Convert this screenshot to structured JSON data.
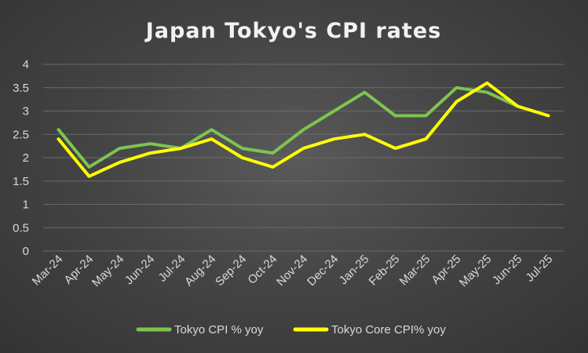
{
  "chart_data": {
    "type": "line",
    "title": "Japan Tokyo's CPI rates",
    "xlabel": "",
    "ylabel": "",
    "categories": [
      "Mar-24",
      "Apr-24",
      "May-24",
      "Jun-24",
      "Jul-24",
      "Aug-24",
      "Sep-24",
      "Oct-24",
      "Nov-24",
      "Dec-24",
      "Jan-25",
      "Feb-25",
      "Mar-25",
      "Apr-25",
      "May-25",
      "Jun-25",
      "Jul-25"
    ],
    "yticks": [
      "0",
      "0.5",
      "1",
      "1.5",
      "2",
      "2.5",
      "3",
      "3.5",
      "4"
    ],
    "ylim": [
      0,
      4
    ],
    "grid": true,
    "legend": "bottom",
    "series": [
      {
        "name": "Tokyo CPI % yoy",
        "color": "#7dc451",
        "values": [
          2.6,
          1.8,
          2.2,
          2.3,
          2.2,
          2.6,
          2.2,
          2.1,
          2.6,
          3.0,
          3.4,
          2.9,
          2.9,
          3.5,
          3.4,
          3.1,
          2.9
        ]
      },
      {
        "name": "Tokyo Core CPI% yoy",
        "color": "#ffff00",
        "values": [
          2.4,
          1.6,
          1.9,
          2.1,
          2.2,
          2.4,
          2.0,
          1.8,
          2.2,
          2.4,
          2.5,
          2.2,
          2.4,
          3.2,
          3.6,
          3.1,
          2.9
        ]
      }
    ]
  }
}
